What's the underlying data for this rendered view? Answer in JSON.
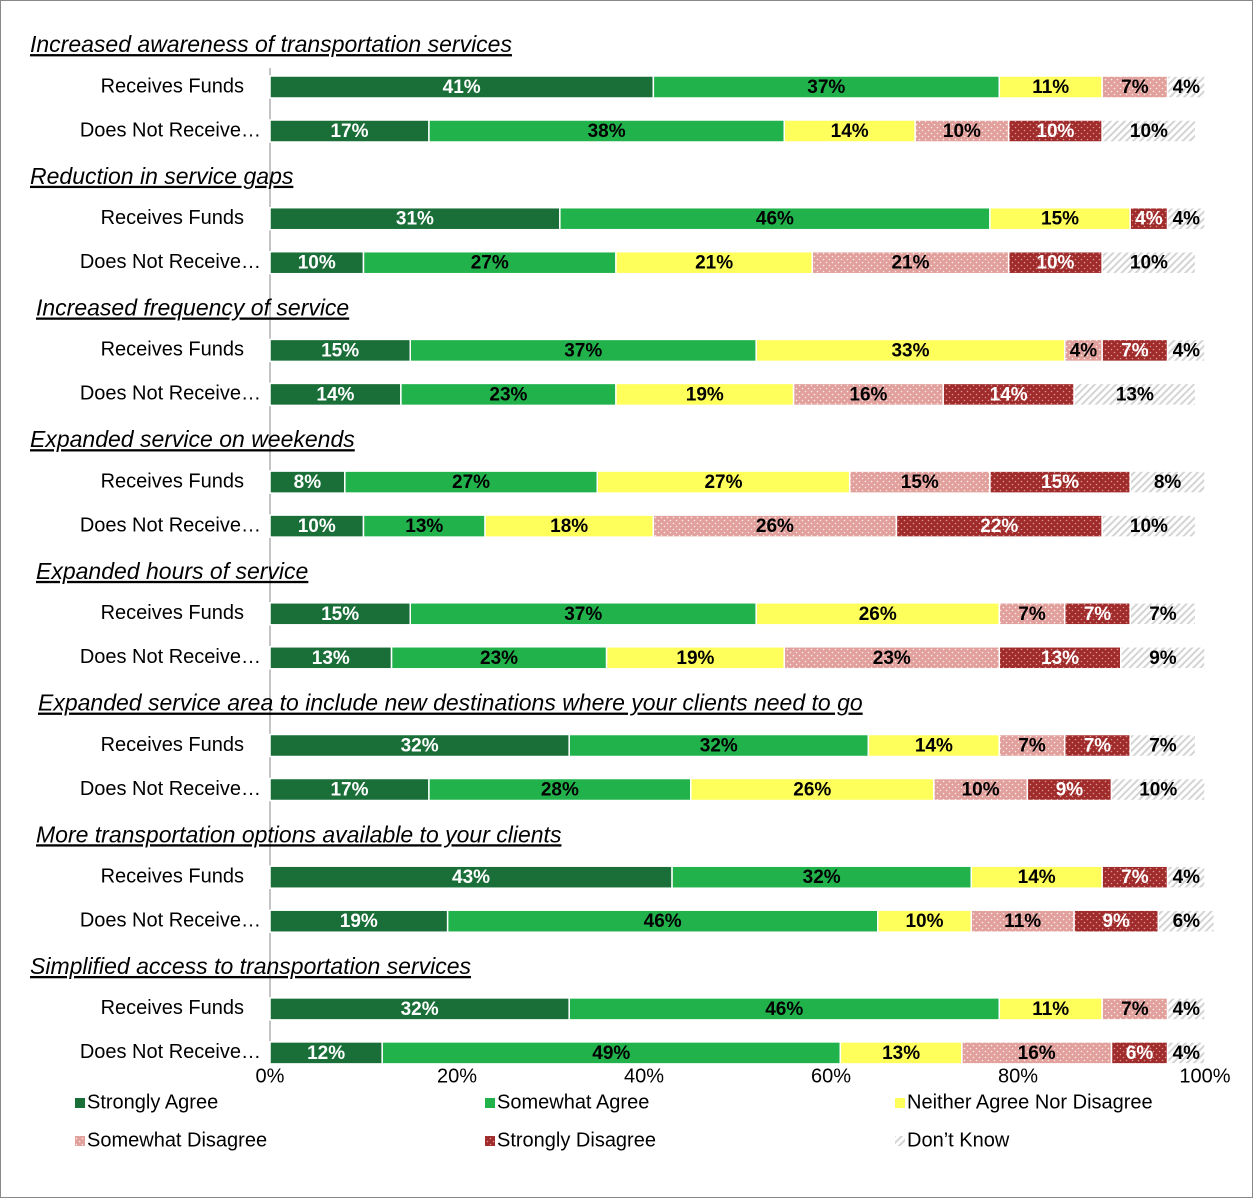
{
  "chart_data": {
    "type": "bar",
    "orientation": "horizontal",
    "stacked": true,
    "group_titles": [
      "Increased awareness of transportation services",
      "Reduction in service gaps",
      "Increased frequency of service",
      "Expanded service on weekends",
      "Expanded hours of service",
      "Expanded service area to include new destinations where your clients need to go",
      "More transportation options available to your clients",
      "Simplified access to transportation services"
    ],
    "categories": [
      "Receives Funds",
      "Does Not Receive…",
      "Receives Funds",
      "Does Not Receive…",
      "Receives Funds",
      "Does Not Receive…",
      "Receives Funds",
      "Does Not Receive…",
      "Receives Funds",
      "Does Not Receive…",
      "Receives Funds",
      "Does Not Receive…",
      "Receives Funds",
      "Does Not Receive…",
      "Receives Funds",
      "Does Not Receive…"
    ],
    "series": [
      {
        "name": "Strongly Agree",
        "color": "#1a6e38",
        "values": [
          41,
          17,
          31,
          10,
          15,
          14,
          8,
          10,
          15,
          13,
          32,
          17,
          43,
          19,
          32,
          12
        ],
        "value_labels": [
          "41%",
          "17%",
          "31%",
          "10%",
          "15%",
          "14%",
          "8%",
          "10%",
          "15%",
          "13%",
          "32%",
          "17%",
          "43%",
          "19%",
          "32%",
          "12%"
        ]
      },
      {
        "name": "Somewhat Agree",
        "color": "#22b24c",
        "values": [
          37,
          38,
          46,
          27,
          37,
          23,
          27,
          13,
          37,
          23,
          32,
          28,
          32,
          46,
          46,
          49
        ],
        "value_labels": [
          "37%",
          "38%",
          "46%",
          "27%",
          "37%",
          "23%",
          "27%",
          "13%",
          "37%",
          "23%",
          "32%",
          "28%",
          "32%",
          "46%",
          "46%",
          "49%"
        ]
      },
      {
        "name": "Neither Agree Nor Disagree",
        "color": "#ffff5c",
        "values": [
          11,
          14,
          15,
          21,
          33,
          19,
          27,
          18,
          26,
          19,
          14,
          26,
          14,
          10,
          11,
          13
        ],
        "value_labels": [
          "11%",
          "14%",
          "15%",
          "21%",
          "33%",
          "19%",
          "27%",
          "18%",
          "26%",
          "19%",
          "14%",
          "26%",
          "14%",
          "10%",
          "11%",
          "13%"
        ]
      },
      {
        "name": "Somewhat Disagree",
        "color": "#e2a09c",
        "values": [
          7,
          10,
          null,
          21,
          4,
          16,
          15,
          26,
          7,
          23,
          7,
          10,
          null,
          11,
          7,
          16
        ],
        "value_labels": [
          "7%",
          "10%",
          null,
          "21%",
          "4%",
          "16%",
          "15%",
          "26%",
          "7%",
          "23%",
          "7%",
          "10%",
          null,
          "11%",
          "7%",
          "16%"
        ]
      },
      {
        "name": "Strongly Disagree",
        "color": "#a02b2b",
        "values": [
          null,
          10,
          4,
          10,
          7,
          14,
          15,
          22,
          7,
          13,
          7,
          9,
          7,
          9,
          null,
          6
        ],
        "value_labels": [
          null,
          "10%",
          "4%",
          "10%",
          "7%",
          "14%",
          "15%",
          "22%",
          "7%",
          "13%",
          "7%",
          "9%",
          "7%",
          "9%",
          null,
          "6%"
        ]
      },
      {
        "name": "Don’t Know",
        "color": "#d9d9d9",
        "values": [
          4,
          10,
          4,
          10,
          4,
          13,
          8,
          10,
          7,
          9,
          7,
          10,
          4,
          6,
          4,
          4
        ],
        "value_labels": [
          "4%",
          "10%",
          "4%",
          "10%",
          "4%",
          "13%",
          "8%",
          "10%",
          "7%",
          "9%",
          "7%",
          "10%",
          "4%",
          "6%",
          "4%",
          "4%"
        ]
      }
    ],
    "xlim": [
      0,
      100
    ],
    "xticks": [
      {
        "value": 0,
        "label": "0%"
      },
      {
        "value": 20,
        "label": "20%"
      },
      {
        "value": 40,
        "label": "40%"
      },
      {
        "value": 60,
        "label": "60%"
      },
      {
        "value": 80,
        "label": "80%"
      },
      {
        "value": 100,
        "label": "100%"
      }
    ],
    "legend": "bottom"
  }
}
